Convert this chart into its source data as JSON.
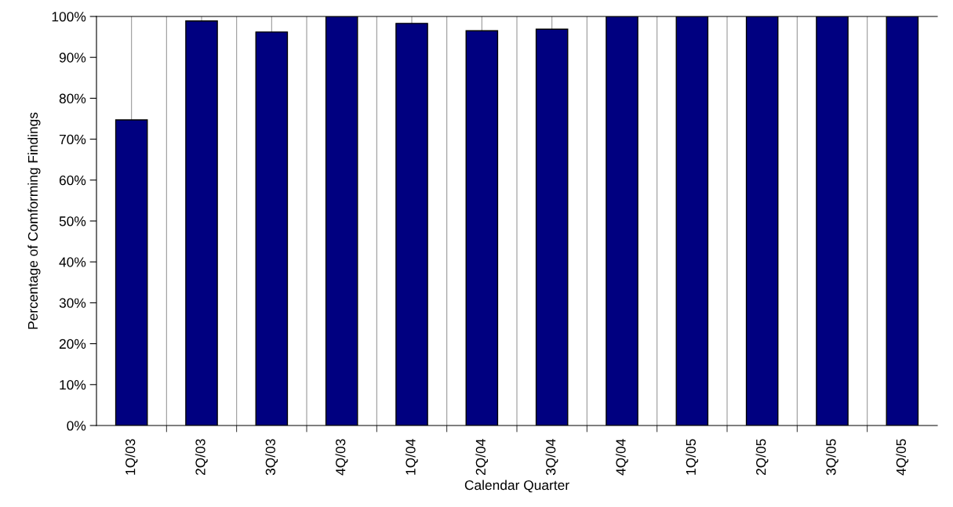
{
  "chart_data": {
    "type": "bar",
    "xlabel": "Calendar Quarter",
    "ylabel": "Percentage of Comforming Findings",
    "categories": [
      "1Q/03",
      "2Q/03",
      "3Q/03",
      "4Q/03",
      "1Q/04",
      "2Q/04",
      "3Q/04",
      "4Q/04",
      "1Q/05",
      "2Q/05",
      "3Q/05",
      "4Q/05"
    ],
    "values": [
      74.7,
      98.9,
      96.2,
      100,
      98.3,
      96.5,
      96.9,
      100,
      100,
      100,
      100,
      100
    ],
    "color": "#000080",
    "ylim": [
      0,
      100
    ],
    "yticks": [
      {
        "value": 0,
        "label": "0%"
      },
      {
        "value": 10,
        "label": "10%"
      },
      {
        "value": 20,
        "label": "20%"
      },
      {
        "value": 30,
        "label": "30%"
      },
      {
        "value": 40,
        "label": "40%"
      },
      {
        "value": 50,
        "label": "50%"
      },
      {
        "value": 60,
        "label": "60%"
      },
      {
        "value": 70,
        "label": "70%"
      },
      {
        "value": 80,
        "label": "80%"
      },
      {
        "value": 90,
        "label": "90%"
      },
      {
        "value": 100,
        "label": "100%"
      }
    ],
    "grid": "x",
    "legend": false
  }
}
